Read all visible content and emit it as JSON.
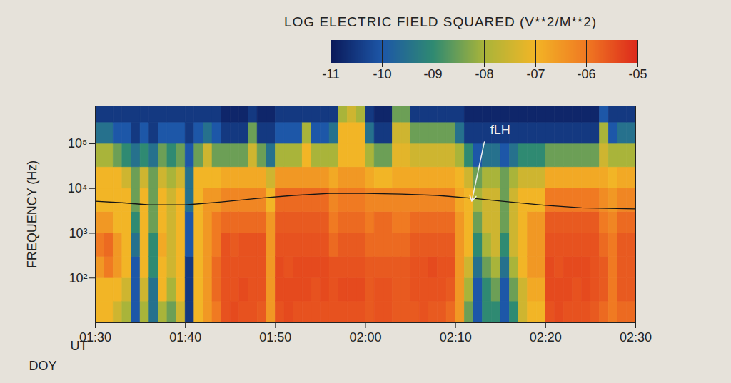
{
  "chart_data": {
    "type": "heatmap",
    "ylabel": "FREQUENCY (Hz)",
    "x_label": "UT",
    "x_sublabel": "DOY",
    "log": "y",
    "xlim": [
      90,
      150
    ],
    "xticks": [
      {
        "value": 90,
        "label": "01:30"
      },
      {
        "value": 100,
        "label": "01:40"
      },
      {
        "value": 110,
        "label": "01:50"
      },
      {
        "value": 120,
        "label": "02:00"
      },
      {
        "value": 130,
        "label": "02:10"
      },
      {
        "value": 140,
        "label": "02:20"
      },
      {
        "value": 150,
        "label": "02:30"
      }
    ],
    "ylim": [
      10,
      700000
    ],
    "yticks": [
      {
        "value": 100,
        "label": "10²"
      },
      {
        "value": 1000,
        "label": "10³"
      },
      {
        "value": 10000,
        "label": "10⁴"
      },
      {
        "value": 100000,
        "label": "10⁵"
      }
    ],
    "colorbar": {
      "title": "LOG ELECTRIC FIELD SQUARED (V**2/M**2)",
      "range": [
        -11,
        -5
      ],
      "ticks": [
        -11,
        -10,
        {
          "value": -9,
          "label": "-09"
        },
        {
          "value": -8,
          "label": "-08"
        },
        {
          "value": -7,
          "label": "-07"
        },
        {
          "value": -6,
          "label": "-06"
        },
        {
          "value": -5,
          "label": "-05"
        }
      ],
      "colors": [
        "#0b1a5a",
        "#1d57a8",
        "#2f8a72",
        "#a9b43a",
        "#f2b526",
        "#f07a22",
        "#dd2a1c"
      ]
    },
    "x_bins": [
      90,
      91,
      92,
      93,
      94,
      95,
      96,
      97,
      98,
      99,
      100,
      101,
      102,
      103,
      104,
      105,
      106,
      107,
      108,
      109,
      110,
      111,
      112,
      113,
      114,
      115,
      116,
      117,
      118,
      119,
      120,
      121,
      122,
      123,
      124,
      125,
      126,
      127,
      128,
      129,
      130,
      131,
      132,
      133,
      134,
      135,
      136,
      137,
      138,
      139,
      140,
      141,
      142,
      143,
      144,
      145,
      146,
      147,
      148,
      149,
      150
    ],
    "y_bins": [
      10,
      30,
      100,
      300,
      1000,
      3000,
      10000,
      30000,
      100000,
      300000,
      700000
    ],
    "z": [
      [
        -7,
        -7,
        -6.5,
        -6,
        -6.5,
        -7,
        -7,
        -8,
        -9.5,
        -10.5
      ],
      [
        -7,
        -7,
        -6,
        -5.8,
        -6.5,
        -7,
        -7,
        -8,
        -9.5,
        -10.5
      ],
      [
        -7.5,
        -7,
        -6.5,
        -6.5,
        -7,
        -7,
        -7,
        -8.5,
        -10,
        -10.5
      ],
      [
        -8,
        -7.5,
        -7,
        -7,
        -7,
        -7,
        -7.5,
        -9,
        -10,
        -10.5
      ],
      [
        -10,
        -10,
        -10,
        -9.5,
        -9,
        -8.5,
        -8.5,
        -9.5,
        -10.5,
        -10.5
      ],
      [
        -8,
        -7.5,
        -7,
        -7,
        -7,
        -7,
        -7.5,
        -9,
        -10,
        -10.5
      ],
      [
        -9.5,
        -9.5,
        -9,
        -9,
        -8.5,
        -8.5,
        -8.5,
        -9.5,
        -10.5,
        -10.5
      ],
      [
        -8,
        -7,
        -7,
        -6.8,
        -7,
        -7,
        -7.5,
        -8.5,
        -10,
        -10.5
      ],
      [
        -8.5,
        -8,
        -7.5,
        -7.5,
        -7.5,
        -7.5,
        -8,
        -9,
        -10,
        -10.5
      ],
      [
        -7.5,
        -7,
        -7,
        -7,
        -7,
        -7,
        -7.5,
        -8.5,
        -10,
        -10.5
      ],
      [
        -10.5,
        -10.5,
        -10.5,
        -10,
        -10,
        -9.5,
        -9.5,
        -10,
        -10.5,
        -10.5
      ],
      [
        -7,
        -7,
        -7,
        -7,
        -7,
        -7,
        -7,
        -8.5,
        -10,
        -10.5
      ],
      [
        -6.5,
        -6.5,
        -6.5,
        -6.5,
        -6.5,
        -6.5,
        -7,
        -7.5,
        -9.5,
        -10.5
      ],
      [
        -6,
        -5.8,
        -5.8,
        -6,
        -6,
        -6.5,
        -7,
        -8.5,
        -10,
        -10.5
      ],
      [
        -5.5,
        -5.5,
        -5.5,
        -5.5,
        -5.8,
        -6.2,
        -6.8,
        -8.5,
        -10.5,
        -10.8
      ],
      [
        -5.4,
        -5.5,
        -5.5,
        -5.6,
        -5.8,
        -6.2,
        -6.8,
        -8.5,
        -10.5,
        -10.8
      ],
      [
        -5.5,
        -5.4,
        -5.5,
        -5.5,
        -5.8,
        -6.2,
        -6.8,
        -8.5,
        -10.5,
        -10.8
      ],
      [
        -5.5,
        -5.5,
        -5.5,
        -5.5,
        -5.8,
        -6.2,
        -6.8,
        -7.5,
        -8.5,
        -10.5
      ],
      [
        -5.6,
        -5.5,
        -5.5,
        -5.5,
        -5.8,
        -6.2,
        -6.8,
        -8.5,
        -10.5,
        -10.8
      ],
      [
        -6.5,
        -6.5,
        -6.5,
        -6.5,
        -6.5,
        -7,
        -7.5,
        -9.5,
        -10.5,
        -10.8
      ],
      [
        -5.5,
        -5.4,
        -5.4,
        -5.5,
        -5.6,
        -5.8,
        -6.5,
        -8,
        -10,
        -10.5
      ],
      [
        -5.4,
        -5.4,
        -5.5,
        -5.5,
        -5.6,
        -5.8,
        -6.5,
        -8,
        -10,
        -10.5
      ],
      [
        -5.5,
        -5.4,
        -5.4,
        -5.5,
        -5.6,
        -5.8,
        -6.5,
        -8,
        -10,
        -10.5
      ],
      [
        -5.5,
        -5.4,
        -5.4,
        -5.5,
        -5.6,
        -5.8,
        -6.5,
        -7,
        -8,
        -10.5
      ],
      [
        -5.5,
        -5.5,
        -5.4,
        -5.5,
        -5.6,
        -5.8,
        -6.5,
        -8,
        -10,
        -10.5
      ],
      [
        -5.5,
        -5.4,
        -5.4,
        -5.5,
        -5.6,
        -5.8,
        -6.5,
        -8,
        -10,
        -10.5
      ],
      [
        -5.5,
        -5.5,
        -5.5,
        -5.8,
        -6,
        -6.2,
        -6.8,
        -8,
        -9.5,
        -10.5
      ],
      [
        -5.5,
        -5.4,
        -5.5,
        -5.6,
        -5.8,
        -6,
        -6.5,
        -7,
        -7,
        -8
      ],
      [
        -5.5,
        -5.4,
        -5.5,
        -5.6,
        -5.8,
        -6,
        -6.5,
        -7,
        -7,
        -7.5
      ],
      [
        -5.5,
        -5.4,
        -5.5,
        -5.6,
        -5.8,
        -6,
        -6.5,
        -7,
        -7,
        -8
      ],
      [
        -5.6,
        -5.6,
        -5.6,
        -5.8,
        -6,
        -6.2,
        -6.8,
        -8,
        -9.5,
        -10.5
      ],
      [
        -5.5,
        -5.5,
        -5.6,
        -5.8,
        -5.8,
        -6.2,
        -7,
        -8.5,
        -10.5,
        -10.8
      ],
      [
        -5.5,
        -5.5,
        -5.6,
        -5.8,
        -5.8,
        -6.2,
        -7,
        -8.5,
        -10.5,
        -10.8
      ],
      [
        -5.6,
        -5.6,
        -5.6,
        -5.8,
        -6,
        -6.2,
        -6.8,
        -7.2,
        -7.5,
        -8.5
      ],
      [
        -5.6,
        -5.6,
        -5.6,
        -5.8,
        -6,
        -6.2,
        -6.8,
        -7.2,
        -7.5,
        -8.5
      ],
      [
        -5.6,
        -5.5,
        -5.5,
        -5.6,
        -5.8,
        -6.2,
        -6.8,
        -7.5,
        -8.5,
        -10.5
      ],
      [
        -5.5,
        -5.5,
        -5.5,
        -5.6,
        -5.8,
        -6.2,
        -6.8,
        -7.5,
        -8.5,
        -10.5
      ],
      [
        -5.6,
        -5.5,
        -5.4,
        -5.6,
        -5.8,
        -6.2,
        -6.8,
        -7.5,
        -8.5,
        -10.5
      ],
      [
        -5.6,
        -5.5,
        -5.5,
        -5.6,
        -5.8,
        -6.2,
        -6.8,
        -7.5,
        -8.5,
        -10.5
      ],
      [
        -5.8,
        -5.6,
        -5.5,
        -5.6,
        -5.8,
        -6.2,
        -6.8,
        -7.5,
        -8.5,
        -10.5
      ],
      [
        -6.5,
        -6.5,
        -6.5,
        -6.5,
        -6.5,
        -6.8,
        -7,
        -8,
        -9.5,
        -10.5
      ],
      [
        -8.5,
        -8,
        -7.5,
        -7,
        -7,
        -7,
        -7.5,
        -9,
        -10.5,
        -10.8
      ],
      [
        -10,
        -10,
        -9.5,
        -9,
        -8.5,
        -8,
        -8.5,
        -10,
        -10.5,
        -10.8
      ],
      [
        -9,
        -9,
        -8.5,
        -8,
        -7.5,
        -7.5,
        -8,
        -9.5,
        -10.5,
        -10.8
      ],
      [
        -9,
        -8.5,
        -8,
        -7.5,
        -7.5,
        -7.5,
        -8,
        -9.5,
        -10.5,
        -10.8
      ],
      [
        -10,
        -10,
        -9.5,
        -9,
        -8.5,
        -8.5,
        -8.5,
        -10,
        -10.5,
        -10.8
      ],
      [
        -9,
        -8.5,
        -8,
        -7.5,
        -7.5,
        -7.5,
        -8,
        -9.5,
        -10.5,
        -10.8
      ],
      [
        -7.5,
        -7.5,
        -7,
        -7,
        -7,
        -7,
        -7.5,
        -9,
        -10.5,
        -10.8
      ],
      [
        -7,
        -6.8,
        -6.5,
        -6.5,
        -6.5,
        -7,
        -7.5,
        -9,
        -10.5,
        -10.8
      ],
      [
        -7,
        -6.8,
        -6.5,
        -6.5,
        -6.5,
        -7,
        -7.5,
        -9,
        -10.5,
        -10.8
      ],
      [
        -5.5,
        -5.4,
        -5.4,
        -5.5,
        -5.6,
        -6,
        -6.8,
        -8.5,
        -10.5,
        -10.8
      ],
      [
        -5.4,
        -5.4,
        -5.5,
        -5.5,
        -5.6,
        -6,
        -6.8,
        -8.5,
        -10.5,
        -10.8
      ],
      [
        -5.5,
        -5.4,
        -5.4,
        -5.5,
        -5.6,
        -6,
        -6.8,
        -8.5,
        -10.5,
        -10.8
      ],
      [
        -5.5,
        -5.5,
        -5.4,
        -5.5,
        -5.6,
        -6,
        -6.8,
        -8.5,
        -10.5,
        -10.8
      ],
      [
        -5.5,
        -5.4,
        -5.4,
        -5.5,
        -5.6,
        -6,
        -6.8,
        -8.5,
        -10.5,
        -10.8
      ],
      [
        -5.6,
        -5.5,
        -5.5,
        -5.5,
        -5.6,
        -6,
        -6.8,
        -8.5,
        -10.5,
        -10.8
      ],
      [
        -5.8,
        -5.6,
        -5.6,
        -5.8,
        -6,
        -6.3,
        -6.8,
        -7.5,
        -8,
        -10
      ],
      [
        -6,
        -6,
        -6,
        -6,
        -6.2,
        -6.5,
        -7,
        -8,
        -10,
        -10.5
      ],
      [
        -5.8,
        -5.6,
        -5.6,
        -5.6,
        -5.8,
        -6.2,
        -6.8,
        -8,
        -9.5,
        -10.5
      ],
      [
        -5.8,
        -5.6,
        -5.6,
        -5.6,
        -5.8,
        -6.2,
        -6.8,
        -8,
        -9.5,
        -10.5
      ]
    ],
    "f_lh": {
      "color": "#151515",
      "x": [
        90,
        93,
        96,
        100,
        104,
        108,
        112,
        116,
        120,
        124,
        128,
        132,
        136,
        140,
        144,
        150
      ],
      "values": [
        5200,
        4800,
        4300,
        4300,
        5000,
        6000,
        7000,
        7800,
        7800,
        7500,
        7000,
        6000,
        5000,
        4200,
        3700,
        3500
      ]
    },
    "annotation": {
      "text": "fLH",
      "x": 133.7,
      "y": 200000,
      "arrow_from": [
        133.2,
        110000
      ],
      "arrow_to": [
        131.8,
        5200
      ]
    }
  }
}
